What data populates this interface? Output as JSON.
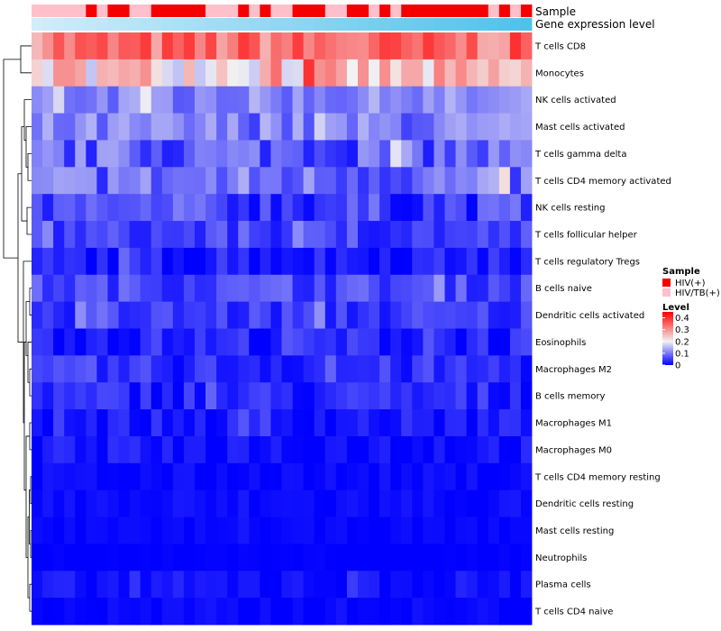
{
  "chart_data": {
    "type": "heatmap",
    "annotations": [
      {
        "name": "Sample",
        "kind": "categorical"
      },
      {
        "name": "Gene expression level",
        "kind": "continuous"
      }
    ],
    "rows": [
      "T cells CD8",
      "Monocytes",
      "NK cells activated",
      "Mast cells activated",
      "T cells gamma delta",
      "T cells CD4 memory activated",
      "NK cells resting",
      "T cells follicular helper",
      "T cells regulatory  Tregs",
      "B cells naive",
      "Dendritic cells activated",
      "Eosinophils",
      "Macrophages M2",
      "B cells memory",
      "Macrophages M1",
      "Macrophages M0",
      "T cells CD4 memory resting",
      "Dendritic cells resting",
      "Mast cells resting",
      "Neutrophils",
      "Plasma cells",
      "T cells CD4 naive"
    ],
    "n_samples": 46,
    "sample_groups": [
      "P",
      "P",
      "P",
      "P",
      "P",
      "R",
      "P",
      "R",
      "R",
      "P",
      "P",
      "R",
      "R",
      "R",
      "R",
      "R",
      "P",
      "P",
      "P",
      "R",
      "P",
      "R",
      "P",
      "P",
      "R",
      "R",
      "R",
      "P",
      "P",
      "R",
      "R",
      "P",
      "R",
      "P",
      "R",
      "R",
      "R",
      "R",
      "R",
      "R",
      "R",
      "R",
      "P",
      "R",
      "P",
      "R"
    ],
    "row_means": [
      0.33,
      0.24,
      0.11,
      0.1,
      0.08,
      0.09,
      0.05,
      0.05,
      0.025,
      0.06,
      0.045,
      0.03,
      0.035,
      0.03,
      0.02,
      0.015,
      0.006,
      0.008,
      0.004,
      0.0,
      0.012,
      0.005
    ],
    "row_spread": [
      0.07,
      0.08,
      0.04,
      0.05,
      0.06,
      0.06,
      0.05,
      0.035,
      0.03,
      0.035,
      0.035,
      0.035,
      0.035,
      0.035,
      0.025,
      0.025,
      0.012,
      0.015,
      0.008,
      0.004,
      0.02,
      0.012
    ],
    "value_range": [
      0,
      0.45
    ],
    "legend": {
      "sample_title": "Sample",
      "groups": [
        {
          "key": "R",
          "label": "HIV(+)",
          "color": "#f50000"
        },
        {
          "key": "P",
          "label": "HIV/TB(+)",
          "color": "#ffc0cb"
        }
      ],
      "level_title": "Level",
      "level_ticks": [
        0.4,
        0.3,
        0.2,
        0.1,
        0
      ],
      "level_tick_labels": [
        "0.4",
        "0.3",
        "0.2",
        "0.1",
        "0"
      ],
      "colors": {
        "low": "#0000ff",
        "mid": "#f2f2f2",
        "high": "#ff0000"
      },
      "mid_value": 0.2
    },
    "expression_bar_colors": {
      "start": "#d2ecf9",
      "end": "#4ec2ec"
    }
  }
}
